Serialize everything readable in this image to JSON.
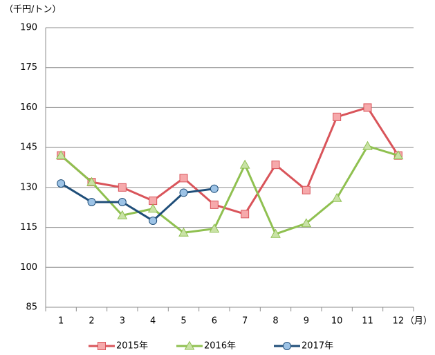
{
  "chart_data": {
    "type": "line",
    "y_unit_label": "（千円/トン）",
    "x_unit_label": "（月）",
    "categories": [
      "1",
      "2",
      "3",
      "4",
      "5",
      "6",
      "7",
      "8",
      "9",
      "10",
      "11",
      "12"
    ],
    "series": [
      {
        "name": "2015年",
        "color": "#d9545a",
        "marker_fill": "#f6a9ab",
        "marker": "square",
        "values": [
          142,
          132,
          130,
          125,
          133.5,
          123.5,
          120,
          138.5,
          129,
          156.5,
          160,
          142
        ]
      },
      {
        "name": "2016年",
        "color": "#8fc050",
        "marker_fill": "#c9e2a6",
        "marker": "triangle",
        "values": [
          142,
          132,
          119.5,
          122,
          113,
          114.5,
          138.5,
          112.5,
          116.5,
          126,
          145.5,
          142
        ]
      },
      {
        "name": "2017年",
        "color": "#1f4e79",
        "marker_fill": "#9dc3e6",
        "marker": "circle",
        "values": [
          131.5,
          124.5,
          124.5,
          117.5,
          128,
          129.5,
          null,
          null,
          null,
          null,
          null,
          null
        ]
      }
    ],
    "ylim": [
      85,
      190
    ],
    "yticks": [
      85,
      100,
      115,
      130,
      145,
      160,
      175,
      190
    ],
    "grid": true
  }
}
